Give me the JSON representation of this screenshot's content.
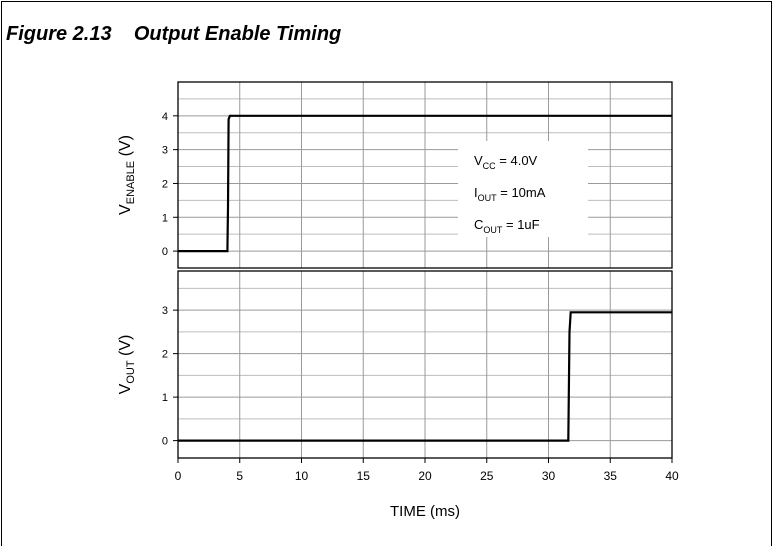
{
  "figure": {
    "label": "Figure 2.13",
    "title": "Output Enable Timing"
  },
  "chart_data": {
    "type": "line",
    "xlabel": "TIME (ms)",
    "x_ticks": [
      0,
      5,
      10,
      15,
      20,
      25,
      30,
      35,
      40
    ],
    "xlim": [
      0,
      40
    ],
    "grid": true,
    "line_color": "#000000",
    "panels": [
      {
        "name": "enable",
        "ylabel_main": "V",
        "ylabel_sub": "ENABLE",
        "ylabel_unit": "(V)",
        "ylim": [
          -0.5,
          5
        ],
        "y_ticks": [
          0,
          1,
          2,
          3,
          4
        ],
        "series": [
          {
            "x": [
              0,
              4.0,
              4.05,
              4.1,
              4.2,
              4.5,
              40
            ],
            "y": [
              0,
              0,
              1.3,
              3.9,
              4.0,
              4.0,
              4.0
            ]
          }
        ],
        "annotations": [
          {
            "main": "V",
            "sub": "CC",
            "rest": " = 4.0V"
          },
          {
            "main": "I",
            "sub": "OUT",
            "rest": " = 10mA"
          },
          {
            "main": "C",
            "sub": "OUT",
            "rest": " = 1uF"
          }
        ]
      },
      {
        "name": "vout",
        "ylabel_main": "V",
        "ylabel_sub": "OUT",
        "ylabel_unit": "(V)",
        "ylim": [
          -0.4,
          3.9
        ],
        "y_ticks": [
          0,
          1,
          2,
          3
        ],
        "series": [
          {
            "x": [
              0,
              31.6,
              31.7,
              31.8,
              32.0,
              40
            ],
            "y": [
              0,
              0,
              2.5,
              2.95,
              2.95,
              2.95
            ]
          }
        ]
      }
    ]
  }
}
